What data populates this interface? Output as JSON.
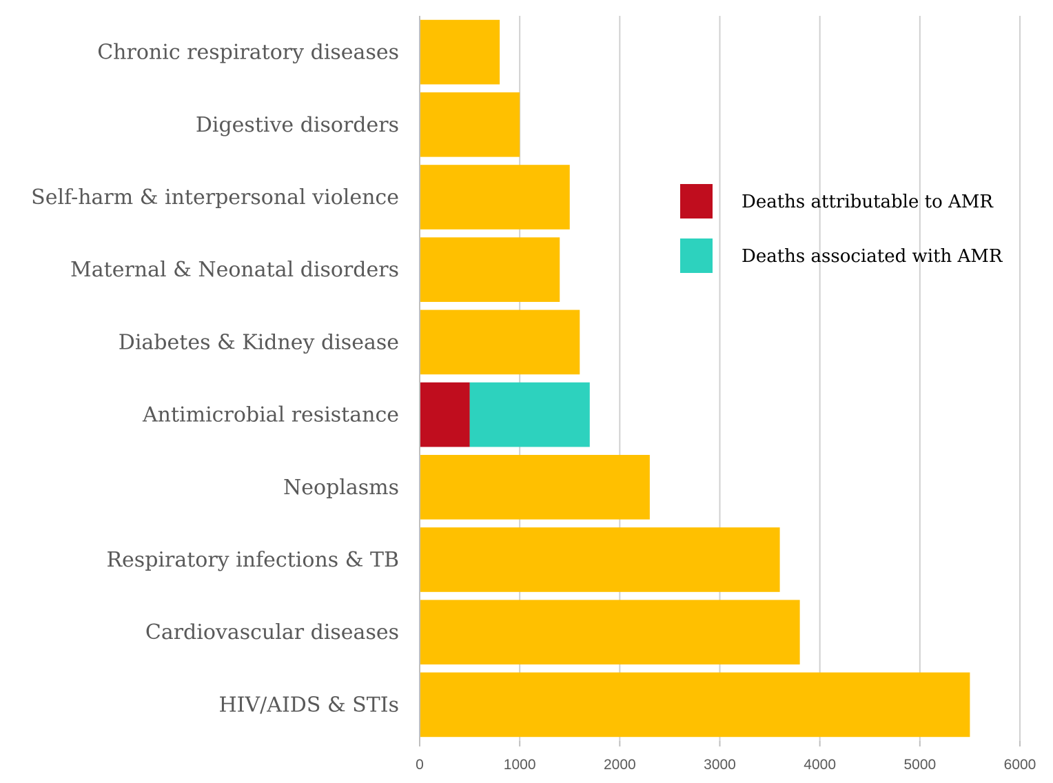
{
  "chart_data": {
    "type": "bar",
    "orientation": "horizontal",
    "stacked": true,
    "categories": [
      "Chronic respiratory diseases",
      "Digestive disorders",
      "Self-harm & interpersonal violence",
      "Maternal & Neonatal disorders",
      "Diabetes & Kidney disease",
      "Antimicrobial resistance",
      "Neoplasms",
      "Respiratory infections & TB",
      "Cardiovascular diseases",
      "HIV/AIDS & STIs"
    ],
    "series": [
      {
        "key": "other",
        "color": "#FFC000",
        "values": [
          800,
          1000,
          1500,
          1400,
          1600,
          0,
          2300,
          3600,
          3800,
          5500
        ]
      },
      {
        "name": "Deaths attributable to AMR",
        "color": "#C00D1E",
        "values": [
          0,
          0,
          0,
          0,
          0,
          500,
          0,
          0,
          0,
          0
        ]
      },
      {
        "name": "Deaths associated with AMR",
        "color": "#2DD2BE",
        "values": [
          0,
          0,
          0,
          0,
          0,
          1200,
          0,
          0,
          0,
          0
        ]
      }
    ],
    "xlim": [
      0,
      6000
    ],
    "xticks": [
      "0",
      "1000",
      "2000",
      "3000",
      "4000",
      "5000",
      "6000"
    ],
    "grid": true,
    "legend": {
      "position": "right",
      "entries": [
        {
          "label": "Deaths attributable to AMR",
          "color": "#C00D1E"
        },
        {
          "label": "Deaths associated with AMR",
          "color": "#2DD2BE"
        }
      ]
    }
  }
}
